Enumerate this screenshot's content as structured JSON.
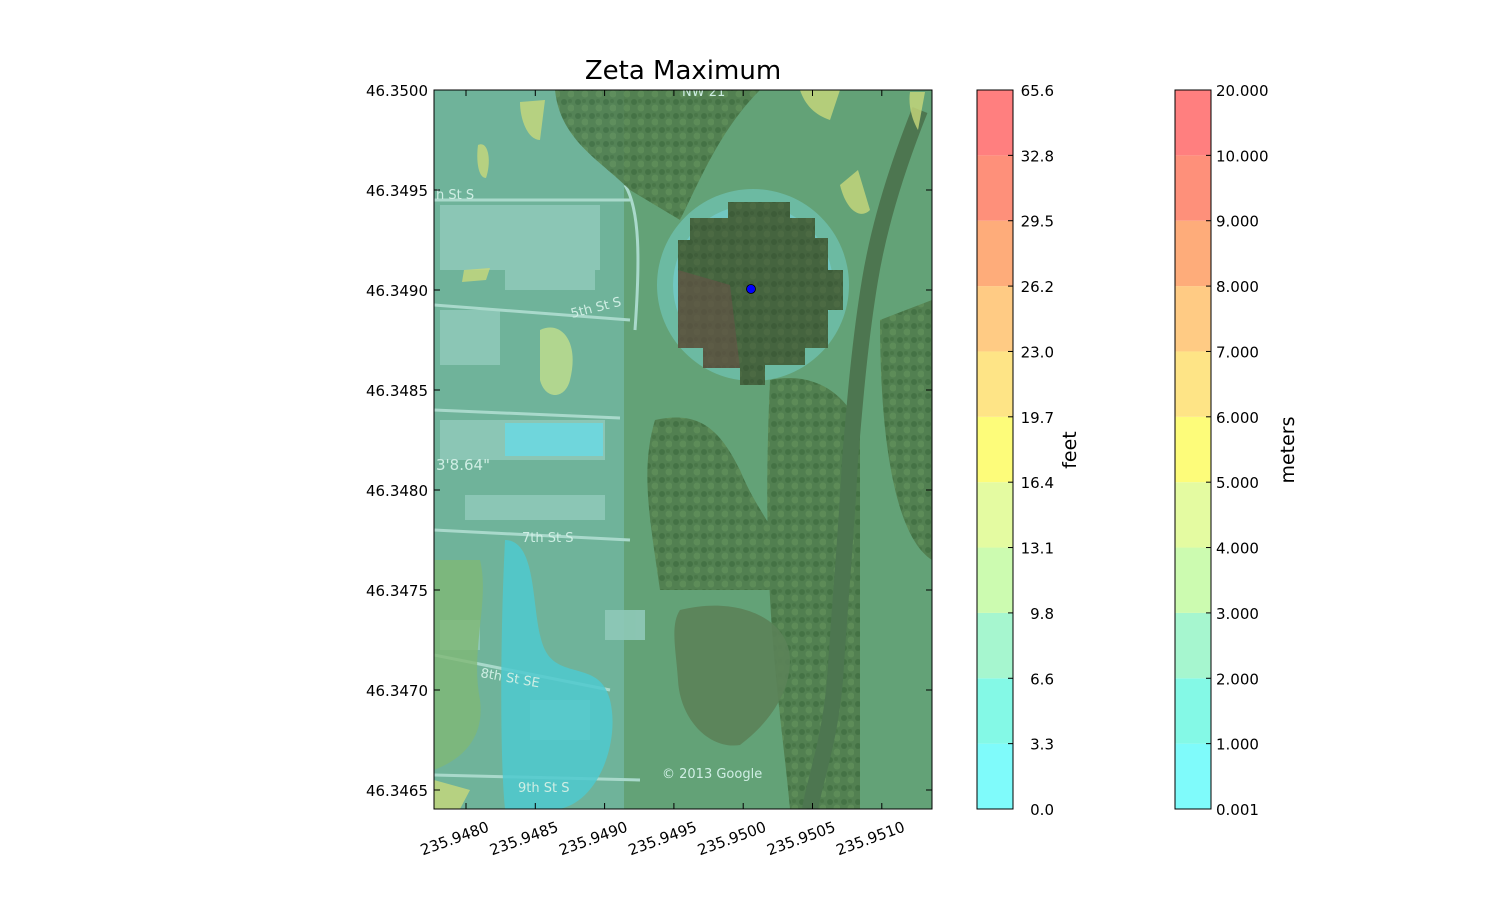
{
  "title": "Zeta Maximum",
  "map": {
    "x_ticks": [
      "235.9480",
      "235.9485",
      "235.9490",
      "235.9495",
      "235.9500",
      "235.9505",
      "235.9510"
    ],
    "y_ticks": [
      "46.3500",
      "46.3495",
      "46.3490",
      "46.3485",
      "46.3480",
      "46.3475",
      "46.3470",
      "46.3465"
    ],
    "street_labels": [
      "5th St S",
      "7th St S",
      "8th St SE",
      "9th St S",
      "h St S",
      "3'8.64\"",
      "NW 21"
    ],
    "watermark": "© 2013 Google",
    "marker_color": "#0000ff"
  },
  "colorbar_feet": {
    "label": "feet",
    "ticks": [
      "65.6",
      "32.8",
      "29.5",
      "26.2",
      "23.0",
      "19.7",
      "16.4",
      "13.1",
      "9.8",
      "6.6",
      "3.3",
      "0.0"
    ]
  },
  "colorbar_meters": {
    "label": "meters",
    "ticks": [
      "20.000",
      "10.000",
      "9.000",
      "8.000",
      "7.000",
      "6.000",
      "5.000",
      "4.000",
      "3.000",
      "2.000",
      "1.000",
      "0.001"
    ]
  },
  "colors": [
    "#7ffbfb",
    "#84f9e6",
    "#a6f6cf",
    "#ccfbb0",
    "#e4fba1",
    "#fdfc7a",
    "#fee486",
    "#ffcb84",
    "#feac7a",
    "#fe907a",
    "#ff7f7f"
  ]
}
